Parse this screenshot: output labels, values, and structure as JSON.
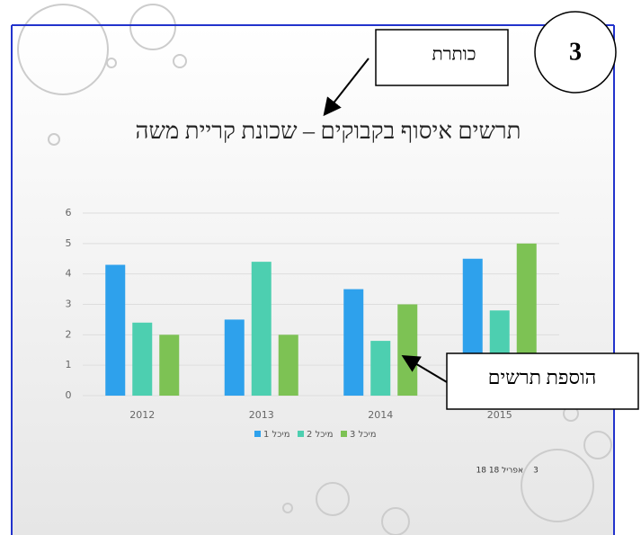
{
  "chart_data": {
    "type": "bar",
    "title": "תרשים איסוף בקבוקים – שכונת קריית משה",
    "categories": [
      "2012",
      "2013",
      "2014",
      "2015"
    ],
    "series": [
      {
        "name": "מיכל 1",
        "color": "#2ea1ec",
        "values": [
          4.3,
          2.5,
          3.5,
          4.5
        ]
      },
      {
        "name": "מיכל 2",
        "color": "#4dcfb0",
        "values": [
          2.4,
          4.4,
          1.8,
          2.8
        ]
      },
      {
        "name": "מיכל 3",
        "color": "#7dc254",
        "values": [
          2.0,
          2.0,
          3.0,
          5.0
        ]
      }
    ],
    "ylim": [
      0,
      6
    ],
    "yticks": [
      0,
      1,
      2,
      3,
      4,
      5,
      6
    ],
    "grid": true
  },
  "slide": {
    "date": "18 אפריל 18",
    "number": "3"
  },
  "annotations": {
    "title_callout": "כותרת",
    "chart_callout": "הוספת תרשים",
    "step": "3"
  }
}
